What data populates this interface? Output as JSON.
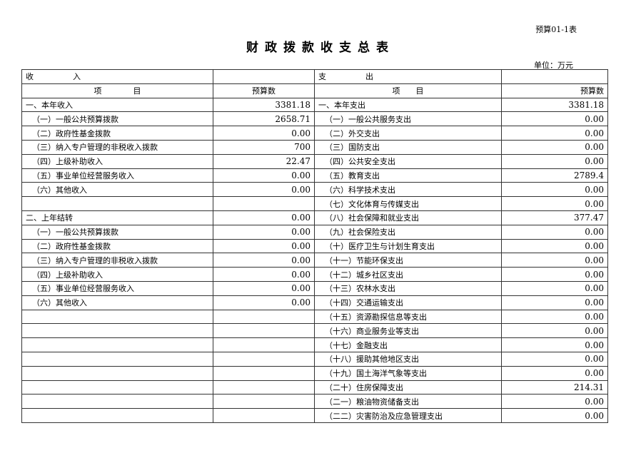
{
  "code": "预算01-1表",
  "title": "财政拨款收支总表",
  "unit": "单位：万元",
  "header": {
    "income": "收　　　　　入",
    "expense": "支　　　　　出",
    "item": "项　　　　目",
    "item_r": "项　　目",
    "budget": "预算数"
  },
  "income": [
    {
      "name": "一、本年收入",
      "value": "3381.18",
      "top": true
    },
    {
      "name": "（一）一般公共预算拨款",
      "value": "2658.71"
    },
    {
      "name": "（二）政府性基金拨款",
      "value": "0.00"
    },
    {
      "name": "（三）纳入专户管理的非税收入拨款",
      "value": "700"
    },
    {
      "name": "（四）上级补助收入",
      "value": "22.47"
    },
    {
      "name": "（五）事业单位经营服务收入",
      "value": "0.00"
    },
    {
      "name": "（六）其他收入",
      "value": "0.00"
    },
    {
      "name": "",
      "value": ""
    },
    {
      "name": "二、上年结转",
      "value": "0.00",
      "top": true
    },
    {
      "name": "（一）一般公共预算拨款",
      "value": "0.00"
    },
    {
      "name": "（二）政府性基金拨款",
      "value": "0.00"
    },
    {
      "name": "（三）纳入专户管理的非税收入拨款",
      "value": "0.00"
    },
    {
      "name": "（四）上级补助收入",
      "value": "0.00"
    },
    {
      "name": "（五）事业单位经营服务收入",
      "value": "0.00"
    },
    {
      "name": "（六）其他收入",
      "value": "0.00"
    }
  ],
  "expense": [
    {
      "name": "一、本年支出",
      "value": "3381.18",
      "top": true
    },
    {
      "name": "（一）一般公共服务支出",
      "value": "0.00"
    },
    {
      "name": "（二）外交支出",
      "value": "0.00"
    },
    {
      "name": "（三）国防支出",
      "value": "0.00"
    },
    {
      "name": "（四）公共安全支出",
      "value": "0.00"
    },
    {
      "name": "（五）教育支出",
      "value": "2789.4"
    },
    {
      "name": "（六）科学技术支出",
      "value": "0.00"
    },
    {
      "name": "（七）文化体育与传媒支出",
      "value": "0.00"
    },
    {
      "name": "（八）社会保障和就业支出",
      "value": "377.47"
    },
    {
      "name": "（九）社会保险支出",
      "value": "0.00"
    },
    {
      "name": "（十）医疗卫生与计划生育支出",
      "value": "0.00"
    },
    {
      "name": "（十一）节能环保支出",
      "value": "0.00"
    },
    {
      "name": "（十二）城乡社区支出",
      "value": "0.00"
    },
    {
      "name": "（十三）农林水支出",
      "value": "0.00"
    },
    {
      "name": "（十四）交通运输支出",
      "value": "0.00"
    },
    {
      "name": "（十五）资源勘探信息等支出",
      "value": "0.00"
    },
    {
      "name": "（十六）商业服务业等支出",
      "value": "0.00"
    },
    {
      "name": "（十七）金融支出",
      "value": "0.00"
    },
    {
      "name": "（十八）援助其他地区支出",
      "value": "0.00"
    },
    {
      "name": "（十九）国土海洋气象等支出",
      "value": "0.00"
    },
    {
      "name": "（二十）住房保障支出",
      "value": "214.31"
    },
    {
      "name": "（二一）粮油物资储备支出",
      "value": "0.00"
    },
    {
      "name": "（二二）灾害防治及应急管理支出",
      "value": "0.00"
    }
  ]
}
